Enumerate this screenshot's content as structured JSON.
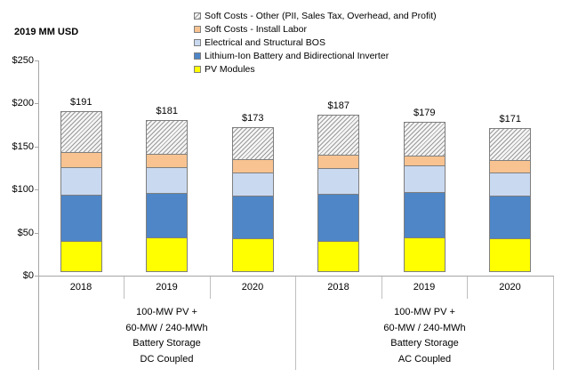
{
  "axis_title": "2019 MM USD",
  "legend": [
    {
      "label": "Soft Costs - Other (PII, Sales Tax, Overhead, and Profit)",
      "swatch": "hatch"
    },
    {
      "label": "Soft Costs - Install Labor",
      "swatch": "#F8C390"
    },
    {
      "label": "Electrical and Structural BOS",
      "swatch": "#C9D9F0"
    },
    {
      "label": "Lithium-Ion Battery and Bidirectional Inverter",
      "swatch": "#4E86C7"
    },
    {
      "label": "PV Modules",
      "swatch": "#FFFF00"
    }
  ],
  "chart_data": {
    "type": "bar",
    "stacked": true,
    "title": "",
    "ylabel": "2019 MM USD",
    "ylim": [
      0,
      250
    ],
    "grid": false,
    "legend_position": "top",
    "yticks": [
      "$250",
      "$200",
      "$150",
      "$100",
      "$50",
      "$0"
    ],
    "categories": [
      "2018",
      "2019",
      "2020",
      "2018",
      "2019",
      "2020"
    ],
    "groups": [
      {
        "label_lines": [
          "100-MW PV +",
          "60-MW / 240-MWh",
          "Battery Storage",
          "DC Coupled"
        ]
      },
      {
        "label_lines": [
          "100-MW PV +",
          "60-MW / 240-MWh",
          "Battery Storage",
          "AC Coupled"
        ]
      }
    ],
    "series": [
      {
        "name": "PV Modules",
        "color": "#FFFF00",
        "values": [
          36,
          40,
          39,
          36,
          40,
          39
        ]
      },
      {
        "name": "Lithium-Ion Battery and Bidirectional Inverter",
        "color": "#4E86C7",
        "values": [
          55,
          53,
          51,
          56,
          54,
          51
        ]
      },
      {
        "name": "Electrical and Structural BOS",
        "color": "#C9D9F0",
        "values": [
          33,
          31,
          28,
          31,
          32,
          28
        ]
      },
      {
        "name": "Soft Costs - Install Labor",
        "color": "#F8C390",
        "values": [
          19,
          16,
          16,
          16,
          12,
          15
        ]
      },
      {
        "name": "Soft Costs - Other (PII, Sales Tax, Overhead, and Profit)",
        "color": "hatch",
        "values": [
          48,
          41,
          39,
          48,
          41,
          38
        ]
      }
    ],
    "totals": [
      "$191",
      "$181",
      "$173",
      "$187",
      "$179",
      "$171"
    ]
  }
}
